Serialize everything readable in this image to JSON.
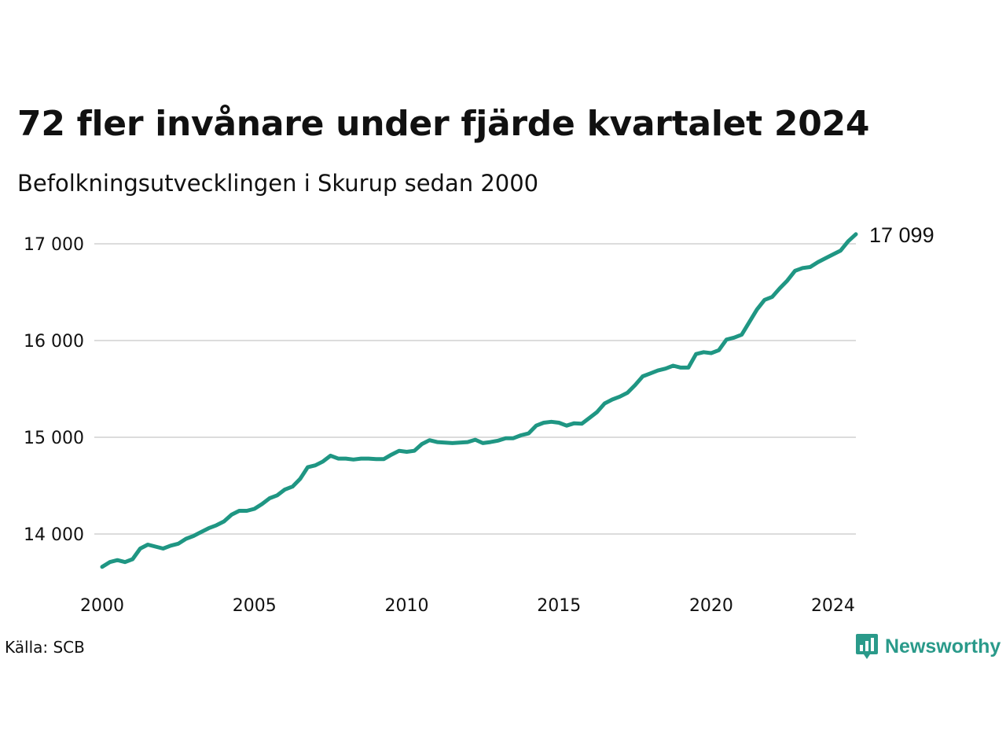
{
  "chart_data": {
    "type": "line",
    "title": "72 fler invånare under fjärde kvartalet 2024",
    "subtitle": "Befolkningsutvecklingen i Skurup sedan 2000",
    "xlabel": "",
    "ylabel": "",
    "grid": "horizontal",
    "line_color": "#1f9683",
    "xlim": [
      2000.0,
      2024.75
    ],
    "ylim": [
      13500,
      17200
    ],
    "x_ticks": [
      2000,
      2005,
      2010,
      2015,
      2020,
      2024
    ],
    "x_tick_labels": [
      "2000",
      "2005",
      "2010",
      "2015",
      "2020",
      "2024"
    ],
    "y_ticks": [
      14000,
      15000,
      16000,
      17000
    ],
    "y_tick_labels": [
      "14 000",
      "15 000",
      "16 000",
      "17 000"
    ],
    "end_label": "17 099",
    "series": [
      {
        "x_start": 2000.0,
        "x_step": 0.25,
        "values": [
          13660,
          13710,
          13730,
          13710,
          13740,
          13850,
          13890,
          13870,
          13850,
          13880,
          13900,
          13950,
          13980,
          14020,
          14060,
          14090,
          14130,
          14200,
          14240,
          14240,
          14260,
          14310,
          14370,
          14400,
          14460,
          14490,
          14570,
          14690,
          14710,
          14750,
          14810,
          14780,
          14780,
          14770,
          14780,
          14780,
          14775,
          14775,
          14820,
          14860,
          14850,
          14860,
          14930,
          14970,
          14950,
          14945,
          14940,
          14945,
          14950,
          14975,
          14940,
          14950,
          14965,
          14990,
          14990,
          15020,
          15040,
          15120,
          15150,
          15160,
          15150,
          15120,
          15145,
          15140,
          15200,
          15260,
          15350,
          15390,
          15420,
          15460,
          15540,
          15630,
          15660,
          15690,
          15710,
          15740,
          15720,
          15720,
          15860,
          15880,
          15870,
          15900,
          16010,
          16030,
          16060,
          16190,
          16320,
          16420,
          16450,
          16540,
          16620,
          16720,
          16750,
          16760,
          16810,
          16850,
          16890,
          16930,
          17027,
          17099
        ]
      }
    ]
  },
  "source": "Källa: SCB",
  "brand": {
    "name": "Newsworthy",
    "icon": "newsworthy-logo-icon",
    "color": "#2a9a8a"
  }
}
